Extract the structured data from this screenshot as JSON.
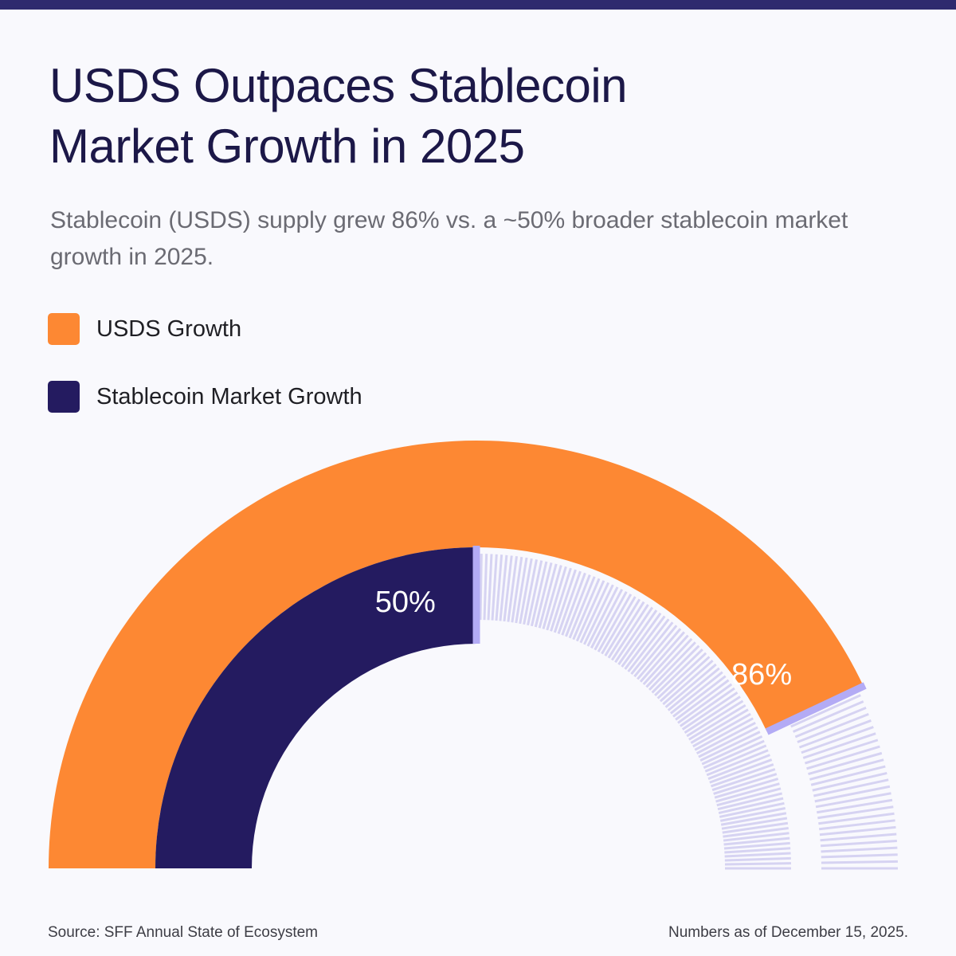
{
  "title_lines": [
    "USDS Outpaces Stablecoin",
    "Market Growth in 2025"
  ],
  "subtitle": "Stablecoin (USDS) supply grew 86% vs. a ~50% broader stablecoin market growth in 2025.",
  "chart_data": {
    "type": "gauge",
    "title": "USDS Outpaces Stablecoin Market Growth in 2025",
    "range": [
      0,
      100
    ],
    "series": [
      {
        "name": "USDS Growth",
        "value": 86,
        "label": "86%",
        "color": "#fd8833"
      },
      {
        "name": "Stablecoin Market Growth",
        "value": 50,
        "label": "50%",
        "color": "#241b60"
      }
    ],
    "legend": "top-left",
    "remainder_style": "hatched",
    "marker_color": "#b3abf5",
    "hatch_color": "#d6d3f2"
  },
  "footer": {
    "source": "Source: SFF Annual State of Ecosystem",
    "note": "Numbers as of December 15, 2025."
  }
}
